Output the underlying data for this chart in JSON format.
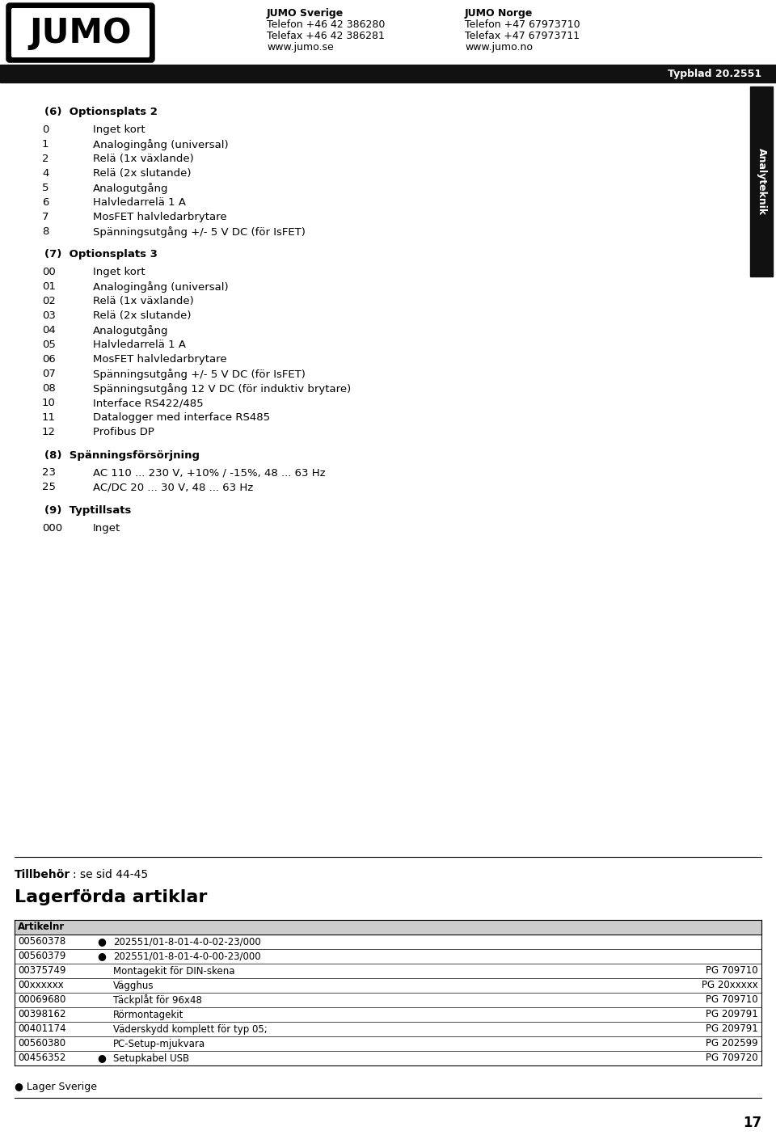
{
  "bg_color": "#ffffff",
  "header_bar_color": "#111111",
  "page_width": 9.6,
  "page_height": 14.04,
  "dpi": 100,
  "header": {
    "jumo_logo_text": "JUMO",
    "col1_lines": [
      "JUMO Sverige",
      "Telefon +46 42 386280",
      "Telefax +46 42 386281",
      "www.jumo.se"
    ],
    "col2_lines": [
      "JUMO Norge",
      "Telefon +47 67973710",
      "Telefax +47 67973711",
      "www.jumo.no"
    ],
    "typblad": "Typblad 20.2551"
  },
  "sidebar_text": "Analyteknik",
  "section6": {
    "heading": "(6)  Optionsplats 2",
    "items": [
      [
        "0",
        "Inget kort"
      ],
      [
        "1",
        "Analogingång (universal)"
      ],
      [
        "2",
        "Relä (1x växlande)"
      ],
      [
        "4",
        "Relä (2x slutande)"
      ],
      [
        "5",
        "Analogutgång"
      ],
      [
        "6",
        "Halvledarrelä 1 A"
      ],
      [
        "7",
        "MosFET halvledarbrytare"
      ],
      [
        "8",
        "Spänningsutgång +/- 5 V DC (för IsFET)"
      ]
    ]
  },
  "section7": {
    "heading": "(7)  Optionsplats 3",
    "items": [
      [
        "00",
        "Inget kort"
      ],
      [
        "01",
        "Analogingång (universal)"
      ],
      [
        "02",
        "Relä (1x växlande)"
      ],
      [
        "03",
        "Relä (2x slutande)"
      ],
      [
        "04",
        "Analogutgång"
      ],
      [
        "05",
        "Halvledarrelä 1 A"
      ],
      [
        "06",
        "MosFET halvledarbrytare"
      ],
      [
        "07",
        "Spänningsutgång +/- 5 V DC (för IsFET)"
      ],
      [
        "08",
        "Spänningsutgång 12 V DC (för induktiv brytare)"
      ],
      [
        "10",
        "Interface RS422/485"
      ],
      [
        "11",
        "Datalogger med interface RS485"
      ],
      [
        "12",
        "Profibus DP"
      ]
    ]
  },
  "section8": {
    "heading": "(8)  Spänningsförsörjning",
    "items": [
      [
        "23",
        "AC 110 ... 230 V, +10% / -15%, 48 ... 63 Hz"
      ],
      [
        "25",
        "AC/DC 20 ... 30 V, 48 ... 63 Hz"
      ]
    ]
  },
  "section9": {
    "heading": "(9)  Typtillsats",
    "items": [
      [
        "000",
        "Inget"
      ]
    ]
  },
  "tillbehor_bold": "Tillbehör",
  "tillbehor_rest": ": se sid 44-45",
  "lagerfordra_title": "Lagerförda artiklar",
  "table_rows": [
    [
      "00560378",
      true,
      "202551/01-8-01-4-0-02-23/000",
      ""
    ],
    [
      "00560379",
      true,
      "202551/01-8-01-4-0-00-23/000",
      ""
    ],
    [
      "00375749",
      false,
      "Montagekit för DIN-skena",
      "PG 709710"
    ],
    [
      "00xxxxxx",
      false,
      "Vägghus",
      "PG 20xxxxx"
    ],
    [
      "00069680",
      false,
      "Täckplåt för 96x48",
      "PG 709710"
    ],
    [
      "00398162",
      false,
      "Rörmontagekit",
      "PG 209791"
    ],
    [
      "00401174",
      false,
      "Väderskydd komplett för typ 05;",
      "PG 209791"
    ],
    [
      "00560380",
      false,
      "PC-Setup-mjukvara",
      "PG 202599"
    ],
    [
      "00456352",
      true,
      "Setupkabel USB",
      "PG 709720"
    ]
  ],
  "footer_note": "● Lager Sverige",
  "page_number": "17"
}
